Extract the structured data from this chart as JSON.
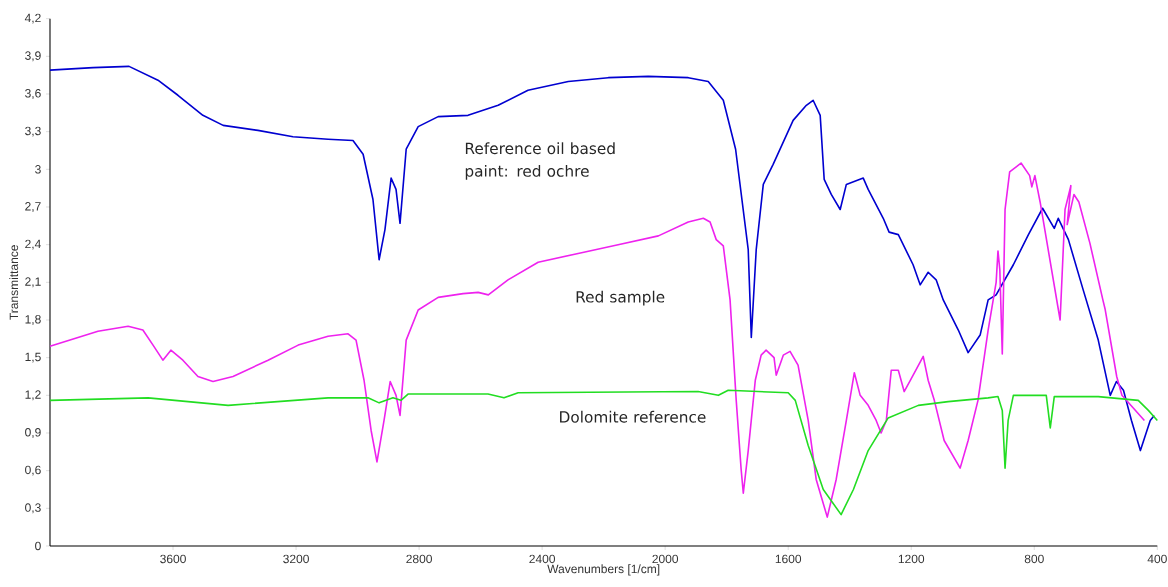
{
  "chart_data": {
    "type": "line",
    "xlabel": "Wavenumbers [1/cm]",
    "ylabel": "Transmittance",
    "xlim": [
      4000,
      400
    ],
    "ylim": [
      0,
      4.2
    ],
    "xticks": [
      3600,
      3200,
      2800,
      2400,
      2000,
      1600,
      1200,
      800,
      400
    ],
    "yticks": [
      {
        "value": 0,
        "label": "0"
      },
      {
        "value": 0.3,
        "label": "0,3"
      },
      {
        "value": 0.6,
        "label": "0,6"
      },
      {
        "value": 0.9,
        "label": "0,9"
      },
      {
        "value": 1.2,
        "label": "1,2"
      },
      {
        "value": 1.5,
        "label": "1,5"
      },
      {
        "value": 1.8,
        "label": "1,8"
      },
      {
        "value": 2.1,
        "label": "2,1"
      },
      {
        "value": 2.4,
        "label": "2,4"
      },
      {
        "value": 2.7,
        "label": "2,7"
      },
      {
        "value": 3,
        "label": "3"
      },
      {
        "value": 3.3,
        "label": "3,3"
      },
      {
        "value": 3.6,
        "label": "3,6"
      },
      {
        "value": 3.9,
        "label": "3,9"
      },
      {
        "value": 4.2,
        "label": "4,2"
      }
    ],
    "grid": false,
    "marker": "none",
    "line_style": "solid",
    "series": [
      {
        "name": "Reference oil based paint: red ochre",
        "color": "#0000d0",
        "x": [
          4000,
          3860,
          3743,
          3649,
          3584,
          3503,
          3437,
          3324,
          3210,
          3096,
          3015,
          2982,
          2950,
          2930,
          2911,
          2891,
          2875,
          2862,
          2842,
          2803,
          2738,
          2641,
          2543,
          2446,
          2315,
          2185,
          2055,
          1925,
          1860,
          1811,
          1771,
          1730,
          1720,
          1704,
          1681,
          1649,
          1584,
          1541,
          1519,
          1496,
          1483,
          1460,
          1431,
          1411,
          1356,
          1340,
          1291,
          1272,
          1242,
          1194,
          1171,
          1145,
          1119,
          1096,
          1047,
          1015,
          976,
          950,
          924,
          868,
          819,
          773,
          735,
          722,
          689,
          641,
          592,
          553,
          533,
          510,
          484,
          455,
          423,
          410
        ],
        "values": [
          3.79,
          3.81,
          3.82,
          3.71,
          3.59,
          3.43,
          3.35,
          3.31,
          3.26,
          3.24,
          3.23,
          3.12,
          2.76,
          2.28,
          2.52,
          2.93,
          2.84,
          2.57,
          3.16,
          3.34,
          3.42,
          3.43,
          3.51,
          3.63,
          3.7,
          3.73,
          3.74,
          3.73,
          3.7,
          3.55,
          3.16,
          2.36,
          1.66,
          2.36,
          2.88,
          3.04,
          3.39,
          3.51,
          3.55,
          3.43,
          2.92,
          2.8,
          2.68,
          2.88,
          2.93,
          2.84,
          2.61,
          2.5,
          2.48,
          2.24,
          2.08,
          2.18,
          2.12,
          1.96,
          1.72,
          1.54,
          1.68,
          1.96,
          2.0,
          2.24,
          2.48,
          2.69,
          2.53,
          2.61,
          2.44,
          2.04,
          1.64,
          1.2,
          1.31,
          1.24,
          1.0,
          0.76,
          1.0,
          1.04
        ]
      },
      {
        "name": "Red sample",
        "color": "#ee22ee",
        "x": [
          4000,
          3844,
          3746,
          3698,
          3665,
          3633,
          3607,
          3568,
          3519,
          3470,
          3405,
          3291,
          3193,
          3096,
          3031,
          3005,
          2979,
          2956,
          2937,
          2914,
          2894,
          2875,
          2862,
          2842,
          2803,
          2738,
          2657,
          2608,
          2575,
          2511,
          2413,
          2283,
          2153,
          2022,
          1925,
          1876,
          1854,
          1834,
          1811,
          1789,
          1769,
          1753,
          1746,
          1730,
          1707,
          1688,
          1672,
          1646,
          1639,
          1616,
          1594,
          1568,
          1535,
          1509,
          1473,
          1444,
          1411,
          1385,
          1366,
          1340,
          1314,
          1298,
          1281,
          1265,
          1242,
          1223,
          1203,
          1161,
          1145,
          1125,
          1093,
          1041,
          1015,
          983,
          950,
          924,
          918,
          912,
          904,
          895,
          880,
          843,
          815,
          808,
          798,
          781,
          716,
          700,
          681,
          693,
          671,
          655,
          619,
          577,
          570,
          532,
          515,
          442
        ],
        "values": [
          1.59,
          1.71,
          1.75,
          1.72,
          1.6,
          1.48,
          1.56,
          1.48,
          1.35,
          1.31,
          1.35,
          1.48,
          1.6,
          1.67,
          1.69,
          1.64,
          1.32,
          0.92,
          0.67,
          1.0,
          1.31,
          1.2,
          1.04,
          1.64,
          1.88,
          1.98,
          2.01,
          2.02,
          2.0,
          2.12,
          2.26,
          2.33,
          2.4,
          2.47,
          2.58,
          2.61,
          2.58,
          2.44,
          2.39,
          1.96,
          1.16,
          0.61,
          0.42,
          0.76,
          1.32,
          1.52,
          1.56,
          1.5,
          1.36,
          1.52,
          1.55,
          1.44,
          1.0,
          0.53,
          0.23,
          0.53,
          1.0,
          1.38,
          1.2,
          1.12,
          1.0,
          0.9,
          1.0,
          1.4,
          1.4,
          1.23,
          1.32,
          1.51,
          1.32,
          1.16,
          0.84,
          0.62,
          0.84,
          1.16,
          1.72,
          2.1,
          2.35,
          2.2,
          1.53,
          2.68,
          2.98,
          3.05,
          2.95,
          2.86,
          2.95,
          2.74,
          1.8,
          2.68,
          2.87,
          2.56,
          2.8,
          2.74,
          2.41,
          1.96,
          1.89,
          1.35,
          1.2,
          1.0
        ]
      },
      {
        "name": "Dolomite reference",
        "color": "#22dd22",
        "x": [
          4000,
          3681,
          3421,
          3096,
          2966,
          2930,
          2885,
          2859,
          2836,
          2576,
          2524,
          2478,
          1893,
          1827,
          1795,
          1600,
          1577,
          1535,
          1486,
          1428,
          1388,
          1340,
          1275,
          1177,
          1080,
          950,
          918,
          904,
          895,
          885,
          868,
          761,
          748,
          735,
          592,
          462,
          429,
          400
        ],
        "values": [
          1.16,
          1.18,
          1.12,
          1.18,
          1.18,
          1.14,
          1.18,
          1.16,
          1.21,
          1.21,
          1.18,
          1.22,
          1.23,
          1.2,
          1.24,
          1.22,
          1.16,
          0.8,
          0.45,
          0.25,
          0.45,
          0.76,
          1.02,
          1.12,
          1.15,
          1.18,
          1.19,
          1.08,
          0.62,
          1.0,
          1.2,
          1.2,
          0.94,
          1.19,
          1.19,
          1.16,
          1.08,
          1.0
        ]
      }
    ]
  }
}
